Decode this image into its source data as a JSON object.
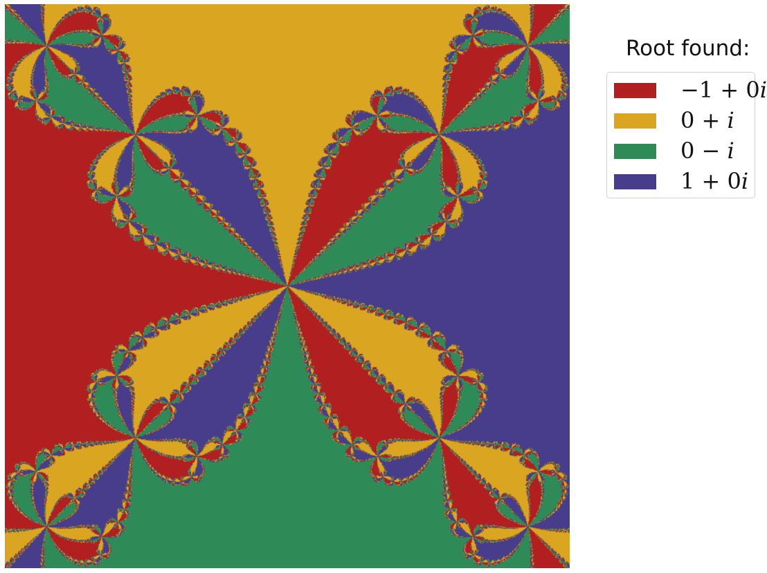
{
  "chart_data": {
    "type": "heatmap",
    "description_of_values": "basin of attraction of Newton's method for z^4 - 1",
    "xlim": [
      -1,
      1
    ],
    "ylim": [
      -1,
      1
    ],
    "grid": false,
    "legend_placement": "right",
    "legend_title": "Root found:",
    "roots": [
      {
        "name": "−1 + 0i",
        "re": -1,
        "im": 0,
        "color": "#b11f20"
      },
      {
        "name": "0 + i",
        "re": 0,
        "im": 1,
        "color": "#daa520"
      },
      {
        "name": "0 − i",
        "re": 0,
        "im": -1,
        "color": "#2e8b57"
      },
      {
        "name": "1 + 0i",
        "re": 1,
        "im": 0,
        "color": "#483d8b"
      }
    ],
    "iterations": 40
  }
}
